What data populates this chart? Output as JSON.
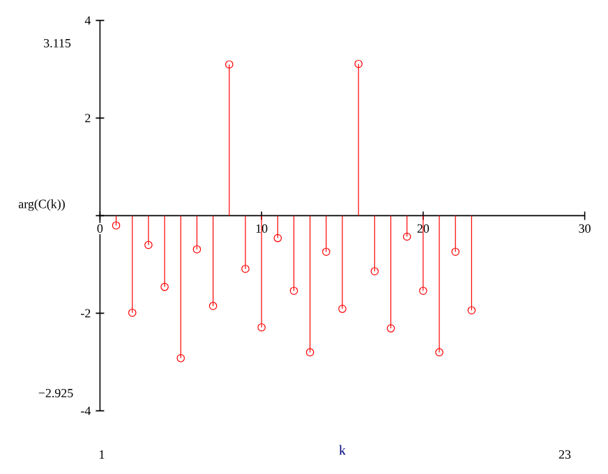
{
  "chart_data": {
    "type": "lollipop",
    "xlabel": "k",
    "ylabel": "arg(C(k))",
    "x": [
      1,
      2,
      3,
      4,
      5,
      6,
      7,
      8,
      9,
      10,
      11,
      12,
      13,
      14,
      15,
      16,
      17,
      18,
      19,
      20,
      21,
      22,
      23
    ],
    "series": [
      {
        "color": "#ff0000",
        "values": [
          -0.2,
          -1.99,
          -0.6,
          -1.46,
          -2.92,
          -0.69,
          -1.85,
          3.1,
          -1.09,
          -2.29,
          -0.46,
          -1.54,
          -2.8,
          -0.74,
          -1.91,
          3.11,
          -1.14,
          -2.31,
          -0.43,
          -1.54,
          -2.8,
          -0.74,
          -1.94
        ]
      }
    ],
    "xlim": [
      0,
      30
    ],
    "xticks": [
      0,
      10,
      20,
      30
    ],
    "ylim": [
      -4,
      4
    ],
    "yticks": [
      -4,
      -2,
      {
        "value": 0,
        "label": null
      },
      2,
      4
    ],
    "marker": "circle",
    "grid": false,
    "annotations": [
      "3.115",
      "−2.925",
      "1",
      "23"
    ]
  }
}
